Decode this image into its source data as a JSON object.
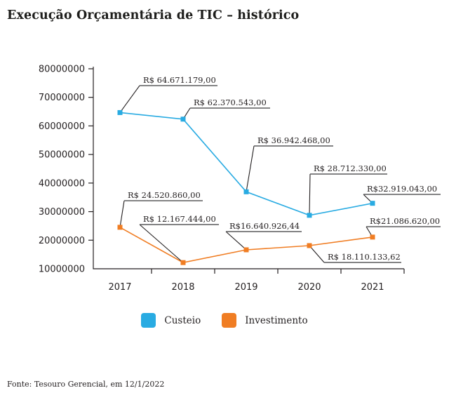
{
  "title": "Execução Orçamentária de TIC – histórico",
  "source": "Fonte: Tesouro Gerencial, em 12/1/2022",
  "legend": {
    "items": [
      {
        "label": "Custeio",
        "color": "#29abe2"
      },
      {
        "label": "Investimento",
        "color": "#f07d23"
      }
    ]
  },
  "colors": {
    "custeio": "#29abe2",
    "investimento": "#f07d23",
    "text": "#231f20",
    "axis": "#231f20",
    "underline": "#5a5a5b"
  },
  "chart_data": {
    "type": "line",
    "title": "Execução Orçamentária de TIC – histórico",
    "categories": [
      "2017",
      "2018",
      "2019",
      "2020",
      "2021"
    ],
    "series": [
      {
        "name": "Custeio",
        "color": "#29abe2",
        "values": [
          64671179.0,
          62370543.0,
          36942468.0,
          28712330.0,
          32919043.0
        ],
        "labels": [
          "R$ 64.671.179,00",
          "R$ 62.370.543,00",
          "R$ 36.942.468,00",
          "R$ 28.712.330,00",
          "R$32.919.043,00"
        ]
      },
      {
        "name": "Investimento",
        "color": "#f07d23",
        "values": [
          24520860.0,
          12167444.0,
          16640926.44,
          18110133.62,
          21086620.0
        ],
        "labels": [
          "R$ 24.520.860,00",
          "R$ 12.167.444,00",
          "R$16.640.926,44",
          "R$ 18.110.133,62",
          "R$21.086.620,00"
        ]
      }
    ],
    "ylim": [
      10000000,
      80000000
    ],
    "ytick_step": 10000000,
    "yticks": [
      "80000000",
      "70000000",
      "60000000",
      "50000000",
      "40000000",
      "30000000",
      "20000000",
      "10000000"
    ],
    "xlabel": "",
    "ylabel": "",
    "grid": false,
    "marker": "square",
    "legend_position": "bottom",
    "value_label_prefix": "R$"
  }
}
